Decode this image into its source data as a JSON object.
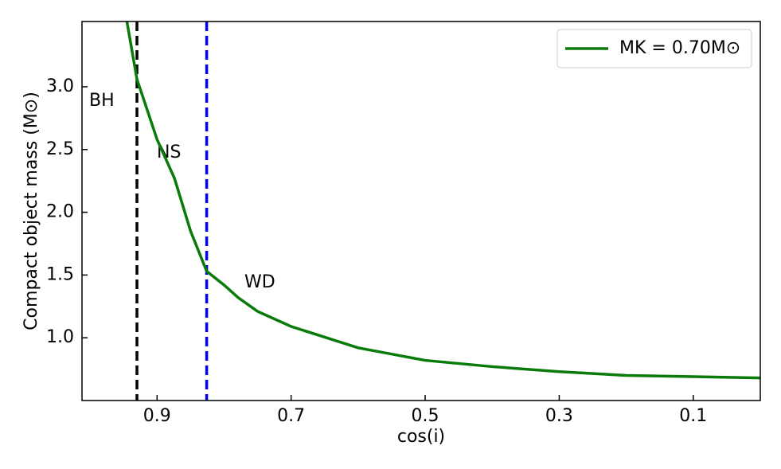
{
  "chart_data": {
    "type": "line",
    "xlabel": "cos(i)",
    "ylabel": "Compact object mass (M⊙)",
    "x": [
      0.945,
      0.93,
      0.9,
      0.874,
      0.85,
      0.826,
      0.8,
      0.779,
      0.75,
      0.7,
      0.6,
      0.5,
      0.4,
      0.3,
      0.2,
      0.1,
      0.0
    ],
    "series": [
      {
        "name": "MK = 0.70M⊙",
        "color": "#0a7a0a",
        "values": [
          3.52,
          3.06,
          2.58,
          2.27,
          1.85,
          1.53,
          1.42,
          1.32,
          1.21,
          1.09,
          0.92,
          0.82,
          0.77,
          0.73,
          0.7,
          0.69,
          0.68
        ]
      }
    ],
    "vlines": [
      {
        "x": 0.93,
        "color": "#000000",
        "label": "BH",
        "label_color": "#000000"
      },
      {
        "x": 0.826,
        "color": "#0000ee",
        "label": "NS",
        "label_color": "#0000ee"
      }
    ],
    "annotations": [
      {
        "text": "WD",
        "color": "#ee0000"
      }
    ],
    "xlim": [
      1.012,
      0.0
    ],
    "xticks": [
      0.9,
      0.7,
      0.5,
      0.3,
      0.1
    ],
    "ylim": [
      0.5,
      3.52
    ],
    "yticks": [
      {
        "value": 1,
        "label": "1.0"
      },
      1.5,
      {
        "value": 2,
        "label": "2.0"
      },
      2.5,
      {
        "value": 3,
        "label": "3.0"
      }
    ],
    "legend": "upper right"
  }
}
